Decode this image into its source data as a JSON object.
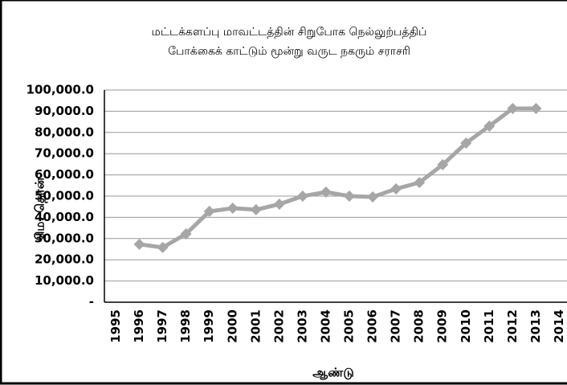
{
  "chart_data": {
    "type": "line",
    "title_lines": [
      "மட்டக்களப்பு மாவட்டத்தின் சிறுபோக நெல்லுற்பத்திப்",
      "போக்கைக் காட்டும் மூன்று வருட நகரும் சராசரி"
    ],
    "x_label": "ஆண்டு",
    "y_label": "மெ. தொன்",
    "categories": [
      "1995",
      "1996",
      "1997",
      "1998",
      "1999",
      "2000",
      "2001",
      "2002",
      "2003",
      "2004",
      "2005",
      "2006",
      "2007",
      "2008",
      "2009",
      "2010",
      "2011",
      "2012",
      "2013",
      "2014"
    ],
    "series": [
      {
        "name": "மூன்று வருட நகரும் சராசரி",
        "color": "#a6a6a6",
        "values": [
          null,
          27300,
          25800,
          32200,
          42800,
          44300,
          43600,
          46200,
          50000,
          51900,
          50000,
          49600,
          53400,
          56400,
          64800,
          75000,
          83000,
          91300,
          91300,
          null
        ]
      }
    ],
    "ylim": [
      0,
      100000
    ],
    "yticks": [
      {
        "value": 0,
        "label": "-"
      },
      {
        "value": 10000,
        "label": "10,000.0"
      },
      {
        "value": 20000,
        "label": "20,000.0"
      },
      {
        "value": 30000,
        "label": "30,000.0"
      },
      {
        "value": 40000,
        "label": "40,000.0"
      },
      {
        "value": 50000,
        "label": "50,000.0"
      },
      {
        "value": 60000,
        "label": "60,000.0"
      },
      {
        "value": 70000,
        "label": "70,000.0"
      },
      {
        "value": 80000,
        "label": "80,000.0"
      },
      {
        "value": 90000,
        "label": "90,000.0"
      },
      {
        "value": 100000,
        "label": "100,000.0"
      }
    ],
    "grid": true
  }
}
